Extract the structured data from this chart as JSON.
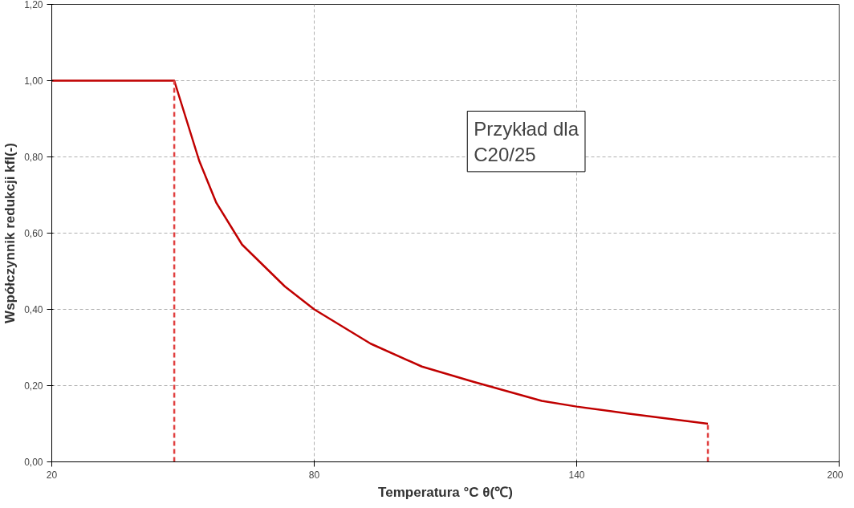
{
  "chart_data": {
    "type": "line",
    "xlabel": "Temperatura °C θ(℃)",
    "ylabel": "Współczynnik redukcji kfl(-)",
    "annotations": [
      "Przykład dla C20/25"
    ],
    "series": [
      {
        "color": "#c00000",
        "line_style": "solid",
        "x": [
          20,
          48,
          53.7,
          57.6,
          63.5,
          73.3,
          80,
          92.9,
          104.6,
          116.4,
          132,
          140,
          151.6,
          170
        ],
        "values": [
          1.0,
          1.0,
          0.79,
          0.68,
          0.57,
          0.46,
          0.4,
          0.31,
          0.25,
          0.21,
          0.16,
          0.145,
          0.127,
          0.1
        ]
      },
      {
        "color": "#e04040",
        "line_style": "dashed",
        "x": [
          48,
          48
        ],
        "values": [
          0,
          1.0
        ]
      },
      {
        "color": "#e04040",
        "line_style": "dashed",
        "x": [
          170,
          170
        ],
        "values": [
          0,
          0.1
        ]
      }
    ],
    "xlim": [
      20,
      200
    ],
    "xticks": [
      20,
      80,
      140,
      200
    ],
    "ylim": [
      0,
      1.2
    ],
    "yticks": [
      {
        "value": 0,
        "label": "0,00"
      },
      {
        "value": 0.2,
        "label": "0,20"
      },
      {
        "value": 0.4,
        "label": "0,40"
      },
      {
        "value": 0.6,
        "label": "0,60"
      },
      {
        "value": 0.8,
        "label": "0,80"
      },
      {
        "value": 1.0,
        "label": "1,00"
      },
      {
        "value": 1.2,
        "label": "1,20"
      }
    ],
    "grid": true
  }
}
